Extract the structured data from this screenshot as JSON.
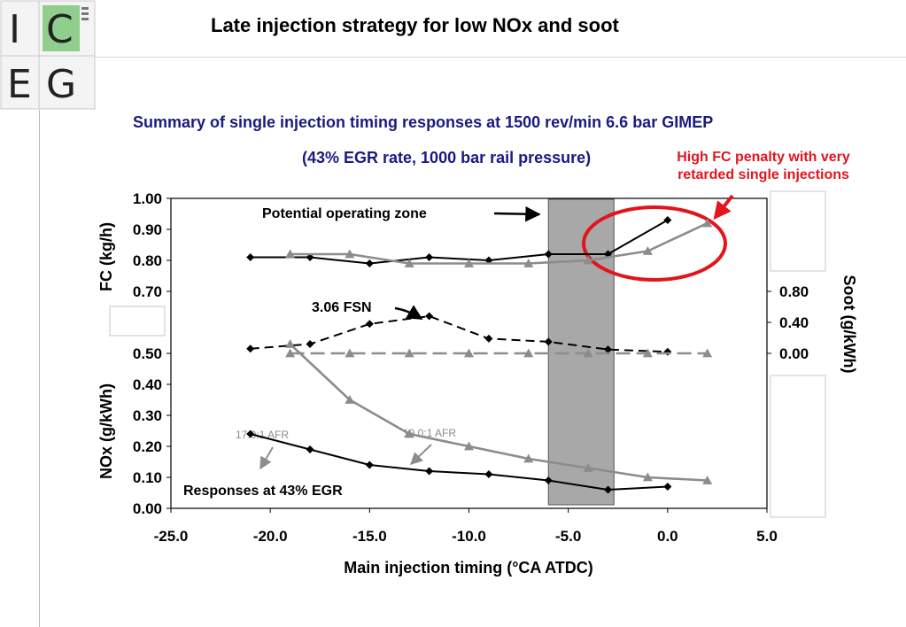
{
  "slide": {
    "title": "Late injection strategy for low NOx and soot",
    "subtitle": "Summary of single injection timing responses at 1500 rev/min 6.6 bar GIMEP",
    "subtitle2": "(43% EGR rate, 1000 bar rail pressure)",
    "callout": [
      "High FC penalty with very",
      "retarded single injections"
    ]
  },
  "logo": {
    "letters": [
      "I",
      "C",
      "E",
      "G"
    ],
    "accent_color": "#8fce8c"
  },
  "colors": {
    "dark_series": "#000000",
    "gray_series": "#8c8c8c",
    "highlight": "#e3141c",
    "shade": "#a8a8a8",
    "title_blue": "#1a1a80"
  },
  "chart_data": {
    "type": "line",
    "xlabel": "Main injection timing (°CA ATDC)",
    "xlim": [
      -25,
      5
    ],
    "x_ticks": [
      "-25.0",
      "-20.0",
      "-15.0",
      "-10.0",
      "-5.0",
      "0.0",
      "5.0"
    ],
    "left_ticks": [
      "0.00",
      "0.10",
      "0.20",
      "0.30",
      "0.40",
      "0.50",
      "0.70",
      "0.80",
      "0.90",
      "1.00"
    ],
    "right_ticks": [
      "0.00",
      "0.40",
      "0.80"
    ],
    "ylabel_fc": "FC (kg/h)",
    "ylabel_nox": "NOx (g/kWh)",
    "ylabel_soot": "Soot (g/kWh)",
    "shaded_zone": [
      -6.0,
      -2.7
    ],
    "annotations": {
      "zone": "Potential operating zone",
      "fsn": "3.06 FSN",
      "afr_dark": "17.0:1 AFR",
      "afr_gray": "19.0:1 AFR",
      "egr": "Responses at 43% EGR"
    },
    "grid": false,
    "series": [
      {
        "group": "FC",
        "style": "dark",
        "x": [
          -21,
          -18,
          -15,
          -12,
          -9,
          -6,
          -3,
          0
        ],
        "values": [
          0.81,
          0.81,
          0.79,
          0.81,
          0.8,
          0.82,
          0.82,
          0.93
        ]
      },
      {
        "group": "FC",
        "style": "gray",
        "x": [
          -19,
          -16,
          -13,
          -10,
          -7,
          -4,
          -1,
          2
        ],
        "values": [
          0.82,
          0.82,
          0.79,
          0.79,
          0.79,
          0.8,
          0.83,
          0.92
        ]
      },
      {
        "group": "Soot",
        "style": "dark",
        "x": [
          -21,
          -18,
          -15,
          -12,
          -9,
          -6,
          -3,
          0
        ],
        "values": [
          0.06,
          0.12,
          0.38,
          0.48,
          0.19,
          0.15,
          0.05,
          0.02
        ]
      },
      {
        "group": "Soot",
        "style": "gray",
        "x": [
          -19,
          -16,
          -13,
          -10,
          -7,
          -4,
          -1,
          2
        ],
        "values": [
          0.0,
          0.0,
          0.0,
          0.0,
          0.0,
          0.0,
          0.0,
          0.0
        ]
      },
      {
        "group": "NOx",
        "style": "dark",
        "x": [
          -21,
          -18,
          -15,
          -12,
          -9,
          -6,
          -3,
          0
        ],
        "values": [
          0.24,
          0.19,
          0.14,
          0.12,
          0.11,
          0.09,
          0.06,
          0.07
        ]
      },
      {
        "group": "NOx",
        "style": "gray",
        "x": [
          -19,
          -16,
          -13,
          -10,
          -7,
          -4,
          -1,
          2
        ],
        "values": [
          0.53,
          0.35,
          0.24,
          0.2,
          0.16,
          0.13,
          0.1,
          0.09
        ]
      }
    ]
  }
}
